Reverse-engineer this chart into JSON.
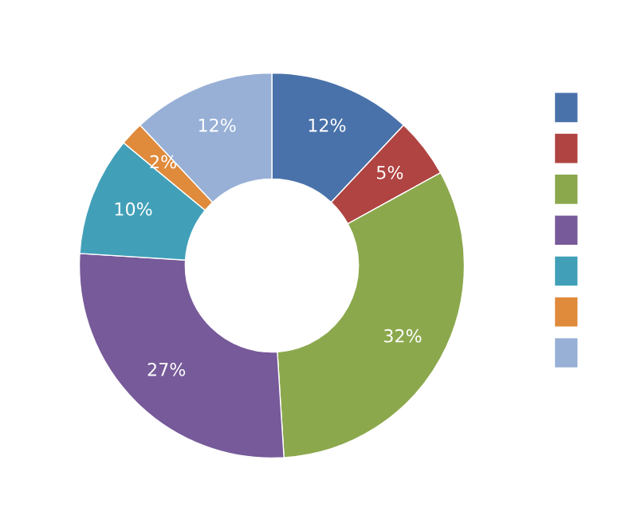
{
  "chart_data": {
    "type": "donut",
    "categories": [
      null,
      null,
      null,
      null,
      null,
      null,
      null
    ],
    "values": [
      12,
      5,
      32,
      27,
      10,
      2,
      12
    ],
    "value_labels": [
      "12%",
      "5%",
      "32%",
      "27%",
      "10%",
      "2%",
      "12%"
    ],
    "colors": [
      "#4a72aa",
      "#b04442",
      "#8ca84d",
      "#775a99",
      "#41a0b8",
      "#e08a3c",
      "#98b0d6"
    ]
  }
}
